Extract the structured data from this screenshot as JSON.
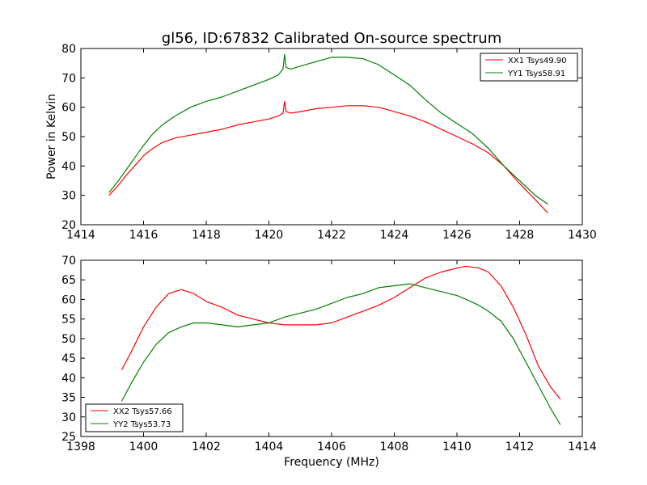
{
  "chart_data": [
    {
      "type": "line",
      "title": "gl56, ID:67832 Calibrated On-source spectrum",
      "xlabel": "",
      "ylabel": "Power in Kelvin",
      "xlim": [
        1414,
        1430
      ],
      "ylim": [
        20,
        80
      ],
      "xticks": [
        "1414",
        "1416",
        "1418",
        "1420",
        "1422",
        "1424",
        "1426",
        "1428",
        "1430"
      ],
      "yticks": [
        "20",
        "30",
        "40",
        "50",
        "60",
        "70",
        "80"
      ],
      "legend_position": "top-right",
      "series": [
        {
          "name": "XX1 Tsys49.90",
          "color": "#ff0000",
          "x": [
            1414.9,
            1415.2,
            1415.5,
            1415.8,
            1416.0,
            1416.3,
            1416.6,
            1417.0,
            1417.5,
            1418.0,
            1418.5,
            1419.0,
            1419.5,
            1420.0,
            1420.3,
            1420.45,
            1420.5,
            1420.55,
            1420.7,
            1421.0,
            1421.5,
            1422.0,
            1422.5,
            1423.0,
            1423.5,
            1424.0,
            1424.5,
            1425.0,
            1425.5,
            1426.0,
            1426.5,
            1427.0,
            1427.5,
            1428.0,
            1428.5,
            1428.9
          ],
          "y": [
            30,
            33.5,
            37.5,
            41,
            43.5,
            46,
            48,
            49.5,
            50.5,
            51.5,
            52.5,
            54,
            55,
            56,
            57,
            58,
            62,
            58.5,
            58,
            58.5,
            59.5,
            60,
            60.5,
            60.5,
            60,
            58.5,
            57,
            55,
            52.5,
            50,
            47.5,
            44.5,
            40,
            34,
            28.5,
            24
          ]
        },
        {
          "name": "YY1 Tsys58.91",
          "color": "#008000",
          "x": [
            1414.9,
            1415.2,
            1415.5,
            1415.8,
            1416.0,
            1416.3,
            1416.6,
            1417.0,
            1417.5,
            1418.0,
            1418.5,
            1419.0,
            1419.5,
            1420.0,
            1420.3,
            1420.45,
            1420.5,
            1420.55,
            1420.7,
            1421.0,
            1421.5,
            1422.0,
            1422.5,
            1423.0,
            1423.5,
            1424.0,
            1424.5,
            1425.0,
            1425.5,
            1426.0,
            1426.5,
            1427.0,
            1427.5,
            1428.0,
            1428.5,
            1428.9
          ],
          "y": [
            31,
            35,
            39.5,
            44,
            47,
            51,
            54,
            57,
            60,
            62,
            63.5,
            65.5,
            67.5,
            69.5,
            71,
            73,
            78,
            73.5,
            73,
            74,
            75.5,
            77,
            77,
            76.5,
            74.5,
            71,
            67.5,
            62.5,
            58,
            54.5,
            51,
            46,
            40,
            35,
            30,
            27
          ]
        }
      ]
    },
    {
      "type": "line",
      "title": "",
      "xlabel": "Frequency (MHz)",
      "ylabel": "",
      "xlim": [
        1398,
        1414
      ],
      "ylim": [
        25,
        70
      ],
      "xticks": [
        "1398",
        "1400",
        "1402",
        "1404",
        "1406",
        "1408",
        "1410",
        "1412",
        "1414"
      ],
      "yticks": [
        "25",
        "30",
        "35",
        "40",
        "45",
        "50",
        "55",
        "60",
        "65",
        "70"
      ],
      "legend_position": "bottom-left",
      "series": [
        {
          "name": "XX2 Tsys57.66",
          "color": "#ff0000",
          "x": [
            1399.3,
            1399.6,
            1400.0,
            1400.4,
            1400.8,
            1401.2,
            1401.6,
            1402.0,
            1402.5,
            1403.0,
            1403.5,
            1404.0,
            1404.5,
            1405.0,
            1405.5,
            1406.0,
            1406.5,
            1407.0,
            1407.5,
            1408.0,
            1408.5,
            1409.0,
            1409.5,
            1410.0,
            1410.3,
            1410.7,
            1411.0,
            1411.4,
            1411.8,
            1412.2,
            1412.6,
            1413.0,
            1413.3
          ],
          "y": [
            42,
            46.5,
            53,
            58,
            61.5,
            62.5,
            61.5,
            59.5,
            58,
            56,
            55,
            54,
            53.5,
            53.5,
            53.5,
            54,
            55.5,
            57,
            58.5,
            60.5,
            63,
            65.5,
            67,
            68,
            68.5,
            68,
            67,
            63.5,
            58,
            51,
            43,
            37.5,
            34.5
          ]
        },
        {
          "name": "YY2 Tsys53.73",
          "color": "#008000",
          "x": [
            1399.3,
            1399.6,
            1400.0,
            1400.4,
            1400.8,
            1401.2,
            1401.6,
            1402.0,
            1402.5,
            1403.0,
            1403.5,
            1404.0,
            1404.5,
            1405.0,
            1405.5,
            1406.0,
            1406.5,
            1407.0,
            1407.5,
            1408.0,
            1408.5,
            1409.0,
            1409.5,
            1410.0,
            1410.3,
            1410.7,
            1411.0,
            1411.4,
            1411.8,
            1412.2,
            1412.6,
            1413.0,
            1413.3
          ],
          "y": [
            34,
            38.5,
            44,
            48.5,
            51.5,
            53,
            54,
            54,
            53.5,
            53,
            53.5,
            54,
            55.5,
            56.5,
            57.5,
            59,
            60.5,
            61.5,
            63,
            63.5,
            64,
            63,
            62,
            61,
            60,
            58.5,
            57,
            54.5,
            50,
            44,
            38,
            32,
            28
          ]
        }
      ]
    }
  ]
}
